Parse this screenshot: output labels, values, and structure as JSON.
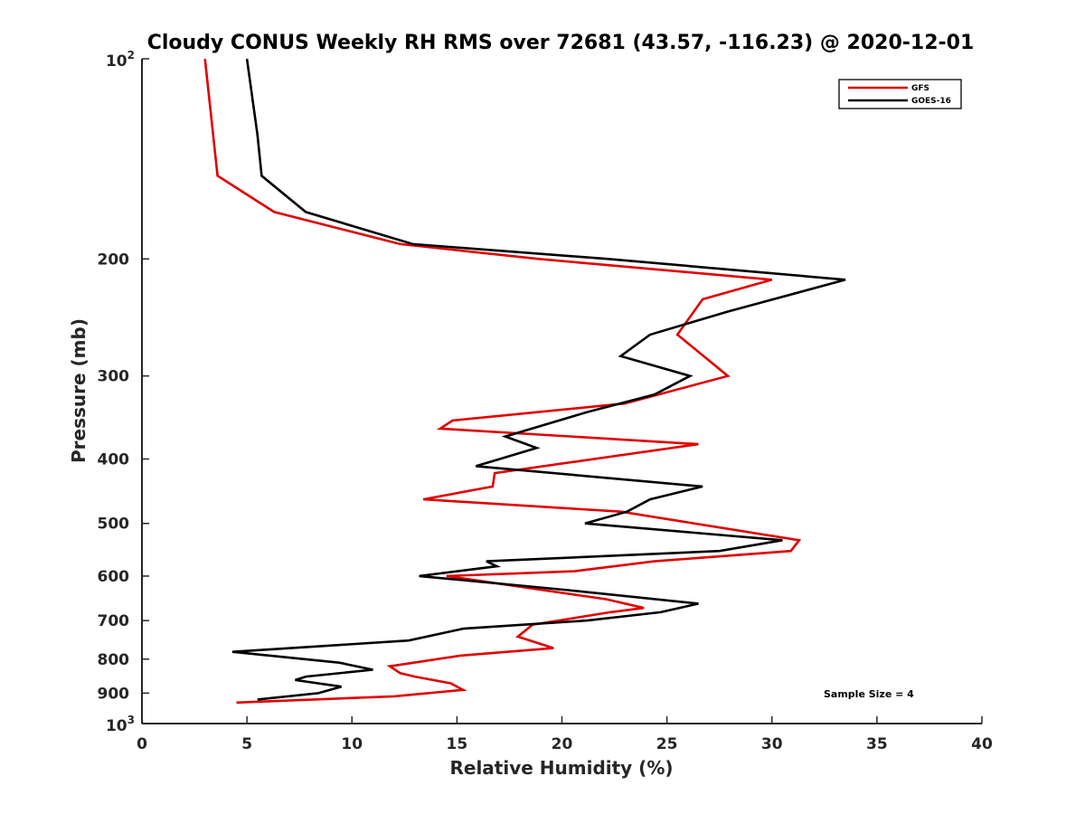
{
  "chart_data": {
    "type": "line",
    "title": "Cloudy CONUS Weekly RH RMS over 72681 (43.57, -116.23) @ 2020-12-01",
    "xlabel": "Relative Humidity (%)",
    "ylabel": "Pressure (mb)",
    "xlim": [
      0,
      40
    ],
    "ylim": [
      100,
      1000
    ],
    "y_scale": "log",
    "y_reversed": true,
    "grid": false,
    "legend_position": "top-right",
    "x_ticks": [
      "0",
      "5",
      "10",
      "15",
      "20",
      "25",
      "30",
      "35",
      "40"
    ],
    "y_ticks": [
      {
        "value": 100,
        "label": "10",
        "sup": "2"
      },
      {
        "value": 200,
        "label": "200",
        "sup": ""
      },
      {
        "value": 300,
        "label": "300",
        "sup": ""
      },
      {
        "value": 400,
        "label": "400",
        "sup": ""
      },
      {
        "value": 500,
        "label": "500",
        "sup": ""
      },
      {
        "value": 600,
        "label": "600",
        "sup": ""
      },
      {
        "value": 700,
        "label": "700",
        "sup": ""
      },
      {
        "value": 800,
        "label": "800",
        "sup": ""
      },
      {
        "value": 900,
        "label": "900",
        "sup": ""
      },
      {
        "value": 1000,
        "label": "10",
        "sup": "3"
      }
    ],
    "annotation": "Sample Size = 4",
    "series": [
      {
        "name": "GFS",
        "color": "#e00000",
        "points": [
          [
            3.0,
            100
          ],
          [
            3.6,
            150
          ],
          [
            6.3,
            170
          ],
          [
            12.3,
            190
          ],
          [
            18.9,
            200
          ],
          [
            30.0,
            215
          ],
          [
            26.7,
            230
          ],
          [
            25.5,
            260
          ],
          [
            27.9,
            300
          ],
          [
            23.0,
            330
          ],
          [
            14.8,
            350
          ],
          [
            14.2,
            360
          ],
          [
            26.5,
            380
          ],
          [
            16.8,
            420
          ],
          [
            16.7,
            440
          ],
          [
            13.4,
            460
          ],
          [
            22.8,
            480
          ],
          [
            31.3,
            530
          ],
          [
            30.9,
            550
          ],
          [
            24.4,
            570
          ],
          [
            20.6,
            590
          ],
          [
            14.5,
            600
          ],
          [
            22.1,
            650
          ],
          [
            23.9,
            670
          ],
          [
            22.3,
            680
          ],
          [
            18.6,
            710
          ],
          [
            17.9,
            740
          ],
          [
            19.6,
            770
          ],
          [
            15.2,
            790
          ],
          [
            11.8,
            820
          ],
          [
            12.3,
            840
          ],
          [
            13.0,
            850
          ],
          [
            14.7,
            870
          ],
          [
            15.3,
            890
          ],
          [
            12.0,
            910
          ],
          [
            4.5,
            930
          ]
        ]
      },
      {
        "name": "GOES-16",
        "color": "#000000",
        "points": [
          [
            5.0,
            100
          ],
          [
            5.5,
            130
          ],
          [
            5.7,
            150
          ],
          [
            7.8,
            170
          ],
          [
            12.9,
            190
          ],
          [
            22.2,
            200
          ],
          [
            33.5,
            215
          ],
          [
            27.9,
            240
          ],
          [
            24.2,
            260
          ],
          [
            22.8,
            280
          ],
          [
            26.1,
            300
          ],
          [
            24.4,
            320
          ],
          [
            21.2,
            340
          ],
          [
            17.3,
            370
          ],
          [
            18.8,
            385
          ],
          [
            15.9,
            410
          ],
          [
            26.7,
            440
          ],
          [
            24.2,
            460
          ],
          [
            23.1,
            480
          ],
          [
            21.1,
            500
          ],
          [
            30.5,
            530
          ],
          [
            27.5,
            550
          ],
          [
            16.4,
            570
          ],
          [
            16.9,
            580
          ],
          [
            13.2,
            600
          ],
          [
            20.3,
            630
          ],
          [
            26.5,
            660
          ],
          [
            24.7,
            680
          ],
          [
            21.2,
            700
          ],
          [
            15.3,
            720
          ],
          [
            12.7,
            750
          ],
          [
            4.3,
            780
          ],
          [
            9.4,
            810
          ],
          [
            11.0,
            830
          ],
          [
            7.8,
            850
          ],
          [
            7.3,
            860
          ],
          [
            9.5,
            880
          ],
          [
            8.4,
            900
          ],
          [
            5.5,
            920
          ]
        ]
      }
    ]
  }
}
